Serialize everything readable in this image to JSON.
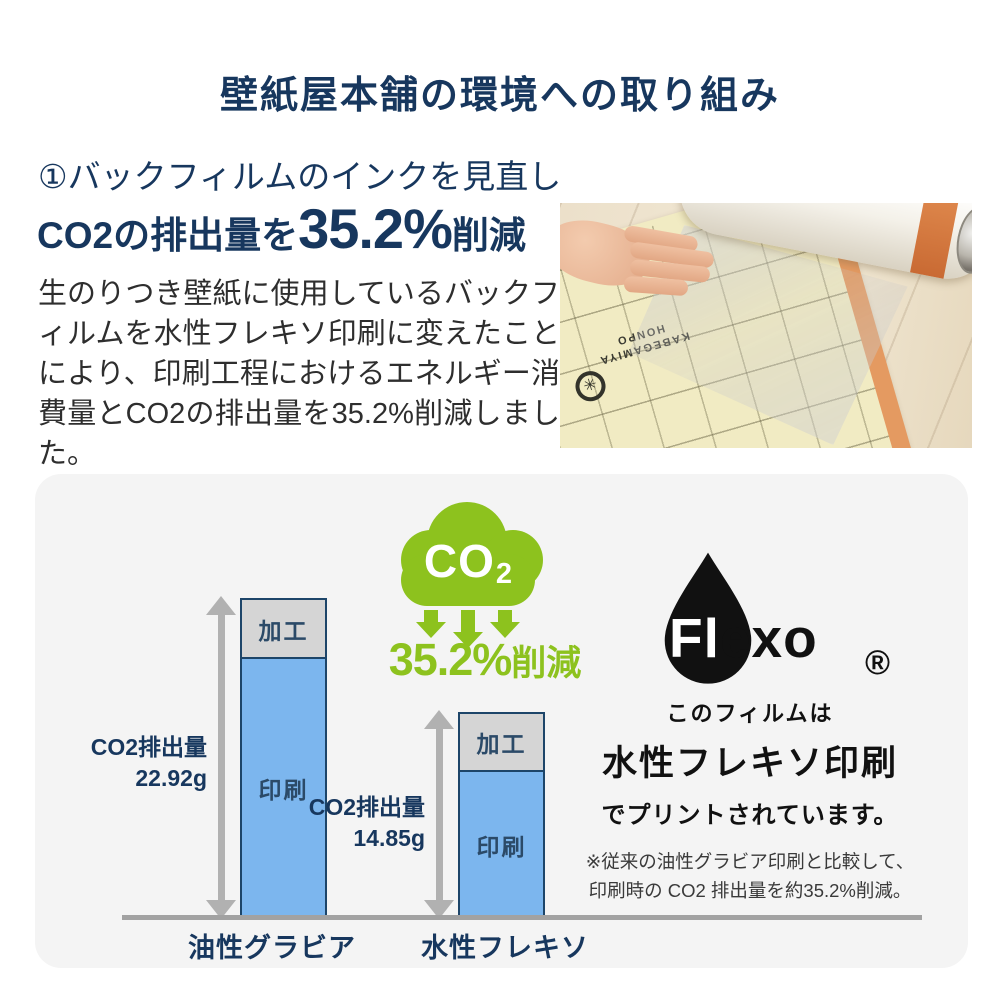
{
  "colors": {
    "navy": "#17375e",
    "green": "#8dc21e",
    "bar_blue": "#7cb6ee",
    "bar_gray": "#d5d5d5",
    "bar_border": "#1d4569",
    "arrow_gray": "#b1b1b1",
    "panel_bg": "#f4f4f4"
  },
  "header": {
    "title": "壁紙屋本舗の環境への取り組み"
  },
  "intro": {
    "heading": "①バックフィルムのインクを見直し",
    "co2_prefix": "CO2の排出量を",
    "co2_value": "35.2%",
    "co2_suffix": "削減",
    "body": "生のりつき壁紙に使用しているバックフィルムを水性フレキソ印刷に変えたことにより、印刷工程におけるエネルギー消費量とCO2の排出量を35.2%削減しました。"
  },
  "photo": {
    "stamp_line1": "KABEGAMIYA",
    "stamp_line2": "HONPO"
  },
  "chart_data": {
    "type": "bar",
    "stacked": true,
    "categories": [
      "油性グラビア",
      "水性フレキソ"
    ],
    "series": [
      {
        "name": "加工",
        "values": [
          4.33,
          4.25
        ],
        "color": "#d5d5d5"
      },
      {
        "name": "印刷",
        "values": [
          18.59,
          10.6
        ],
        "color": "#7cb6ee"
      }
    ],
    "totals": [
      {
        "label": "CO2排出量",
        "value": "22.92g"
      },
      {
        "label": "CO2排出量",
        "value": "14.85g"
      }
    ],
    "unit": "g",
    "ylim": [
      0,
      24
    ],
    "grid": false,
    "legend_position": "none",
    "annotation": {
      "co": "CO",
      "sub": "2",
      "value": "35.2%",
      "suffix": "削減"
    }
  },
  "flexo": {
    "brand_white": "Fl",
    "brand_black": "exo",
    "registered": "®",
    "line1": "このフィルムは",
    "line2": "水性フレキソ印刷",
    "line3": "でプリントされています。",
    "note1": "※従来の油性グラビア印刷と比較して、",
    "note2": "印刷時の CO2 排出量を約35.2%削減。"
  }
}
